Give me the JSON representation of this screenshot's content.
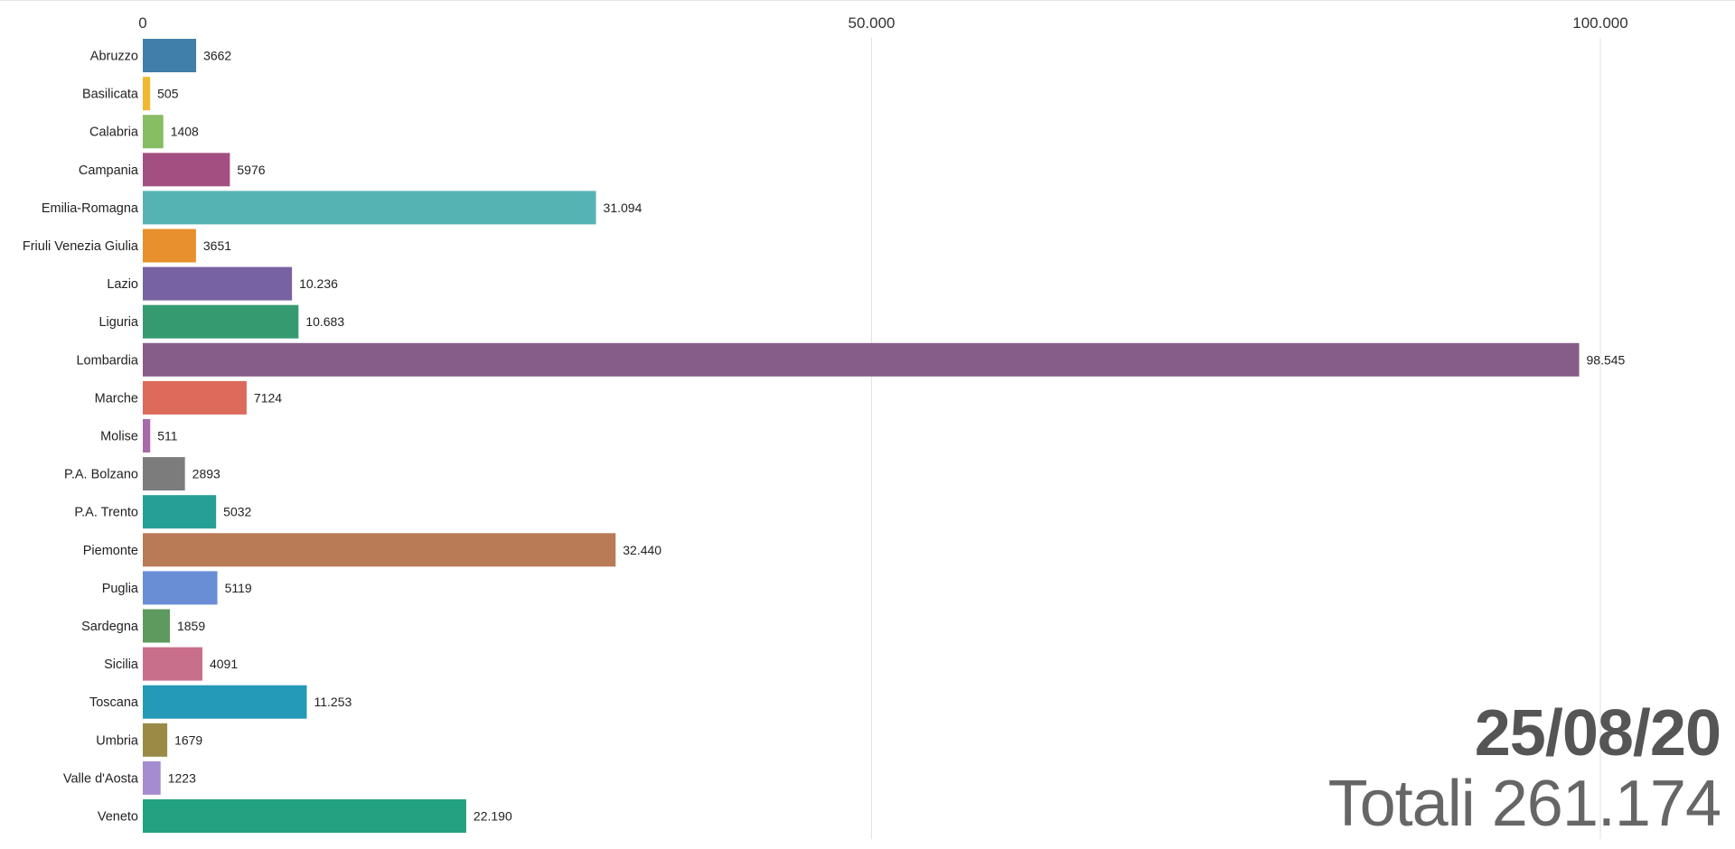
{
  "chart_data": {
    "type": "bar",
    "orientation": "horizontal",
    "categories": [
      "Abruzzo",
      "Basilicata",
      "Calabria",
      "Campania",
      "Emilia-Romagna",
      "Friuli Venezia Giulia",
      "Lazio",
      "Liguria",
      "Lombardia",
      "Marche",
      "Molise",
      "P.A. Bolzano",
      "P.A. Trento",
      "Piemonte",
      "Puglia",
      "Sardegna",
      "Sicilia",
      "Toscana",
      "Umbria",
      "Valle d'Aosta",
      "Veneto"
    ],
    "values": [
      3662,
      505,
      1408,
      5976,
      31094,
      3651,
      10236,
      10683,
      98545,
      7124,
      511,
      2893,
      5032,
      32440,
      5119,
      1859,
      4091,
      11253,
      1679,
      1223,
      22190
    ],
    "value_labels": [
      "3662",
      "505",
      "1408",
      "5976",
      "31.094",
      "3651",
      "10.236",
      "10.683",
      "98.545",
      "7124",
      "511",
      "2893",
      "5032",
      "32.440",
      "5119",
      "1859",
      "4091",
      "11.253",
      "1679",
      "1223",
      "22.190"
    ],
    "colors": [
      "#3f7fa8",
      "#f0b82f",
      "#87bd63",
      "#a44f82",
      "#56b3b3",
      "#e7902d",
      "#7762a3",
      "#359a6f",
      "#865d88",
      "#dc6b5c",
      "#a86aa8",
      "#7c7c7c",
      "#269f97",
      "#b97a56",
      "#6a8ed6",
      "#5e9a5e",
      "#c86f8c",
      "#2599b8",
      "#9b8a46",
      "#a58bd0",
      "#24a17e"
    ],
    "x_ticks": [
      0,
      50000,
      100000
    ],
    "x_tick_labels": [
      "0",
      "50.000",
      "100.000"
    ],
    "xlim": [
      0,
      112000
    ],
    "grid": true,
    "legend": "none"
  },
  "date": "25/08/20",
  "total_label": "Totali",
  "total_value": "261.174"
}
